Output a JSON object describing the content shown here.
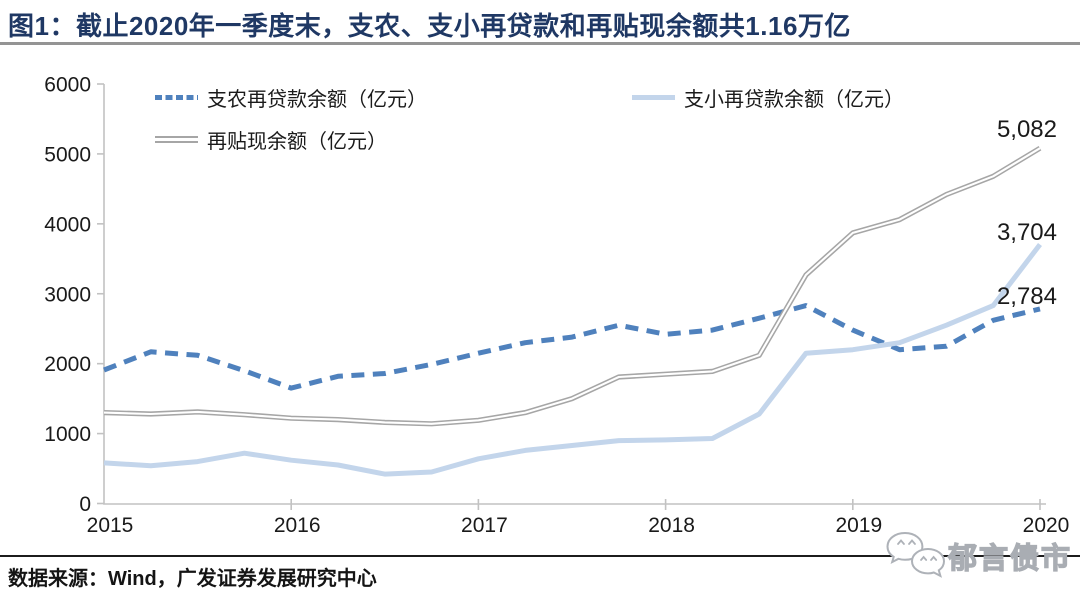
{
  "title": {
    "text": "图1：截止2020年一季度末，支农、支小再贷款和再贴现余额共1.16万亿"
  },
  "source": {
    "text": "数据来源：Wind，广发证券发展研究中心"
  },
  "watermark": {
    "text": "郁言债市"
  },
  "colors": {
    "title": "#1f3864",
    "axis": "#c2c2c2",
    "label_text": "#1a1a1a",
    "zhinong_blue": "#4f81bd",
    "zhixiao_lightblue": "#c3d5eb",
    "zaitiexian_gray": "#a6a6a6"
  },
  "chart_data": {
    "type": "line",
    "title": "截止2020年一季度末，支农、支小再贷款和再贴现余额共1.16万亿",
    "xlabel": "",
    "ylabel": "",
    "x_tick_labels": [
      "2015",
      "2016",
      "2017",
      "2018",
      "2019",
      "2020"
    ],
    "x": [
      "2015Q1",
      "2015Q2",
      "2015Q3",
      "2015Q4",
      "2016Q1",
      "2016Q2",
      "2016Q3",
      "2016Q4",
      "2017Q1",
      "2017Q2",
      "2017Q3",
      "2017Q4",
      "2018Q1",
      "2018Q2",
      "2018Q3",
      "2018Q4",
      "2019Q1",
      "2019Q2",
      "2019Q3",
      "2019Q4",
      "2020Q1"
    ],
    "ylim": [
      0,
      6000
    ],
    "yticks": [
      0,
      1000,
      2000,
      3000,
      4000,
      5000,
      6000
    ],
    "grid": false,
    "legend_position": "top-left-two-column",
    "series": [
      {
        "name": "支农再贷款余额（亿元）",
        "line_style": "dashed",
        "color": "#4f81bd",
        "end_label": "2,784",
        "end_value": 2784,
        "values": [
          1910,
          2170,
          2120,
          1900,
          1650,
          1820,
          1860,
          1990,
          2150,
          2300,
          2380,
          2550,
          2420,
          2480,
          2650,
          2830,
          2480,
          2200,
          2250,
          2620,
          2784
        ]
      },
      {
        "name": "支小再贷款余额（亿元）",
        "line_style": "solid",
        "color": "#c3d5eb",
        "end_label": "3,704",
        "end_value": 3704,
        "values": [
          580,
          540,
          600,
          720,
          620,
          550,
          420,
          450,
          640,
          760,
          830,
          900,
          910,
          930,
          1280,
          2150,
          2200,
          2300,
          2550,
          2830,
          3704
        ]
      },
      {
        "name": "再贴现余额（亿元）",
        "line_style": "double-solid",
        "color": "#a6a6a6",
        "end_label": "5,082",
        "end_value": 5082,
        "values": [
          1300,
          1280,
          1310,
          1270,
          1220,
          1200,
          1160,
          1140,
          1190,
          1300,
          1500,
          1810,
          1850,
          1890,
          2120,
          3270,
          3870,
          4060,
          4420,
          4680,
          5082
        ]
      }
    ]
  }
}
